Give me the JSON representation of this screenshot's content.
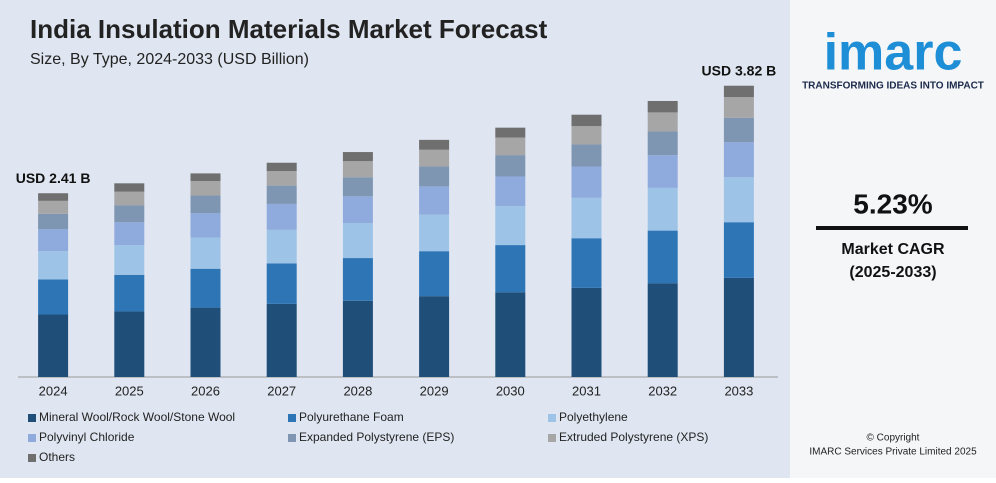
{
  "chart_data": {
    "type": "stacked_bar",
    "title": "India Insulation Materials Market Forecast",
    "subtitle": "Size, By Type, 2024-2033 (USD Billion)",
    "annotations": [
      "USD 2.41 B",
      "USD 3.82 B"
    ],
    "categories": [
      "2024",
      "2025",
      "2026",
      "2027",
      "2028",
      "2029",
      "2030",
      "2031",
      "2032",
      "2033"
    ],
    "ylim": [
      0,
      4
    ],
    "series": [
      {
        "name": "Mineral Wool/Rock Wool/Stone Wool",
        "color": "#1f4e79",
        "values": [
          0.82,
          0.86,
          0.91,
          0.96,
          1.0,
          1.06,
          1.11,
          1.17,
          1.23,
          1.3
        ]
      },
      {
        "name": "Polyurethane Foam",
        "color": "#2e75b6",
        "values": [
          0.46,
          0.48,
          0.51,
          0.53,
          0.56,
          0.59,
          0.62,
          0.65,
          0.69,
          0.73
        ]
      },
      {
        "name": "Polyethylene",
        "color": "#9dc3e6",
        "values": [
          0.37,
          0.39,
          0.41,
          0.44,
          0.46,
          0.48,
          0.51,
          0.53,
          0.56,
          0.59
        ]
      },
      {
        "name": "Polyvinyl Chloride",
        "color": "#8faadc",
        "values": [
          0.29,
          0.3,
          0.32,
          0.34,
          0.35,
          0.37,
          0.39,
          0.41,
          0.43,
          0.46
        ]
      },
      {
        "name": "Expanded Polystyrene (EPS)",
        "color": "#7f96b2",
        "values": [
          0.2,
          0.22,
          0.23,
          0.24,
          0.25,
          0.26,
          0.28,
          0.29,
          0.31,
          0.32
        ]
      },
      {
        "name": "Extruded Polystyrene (XPS)",
        "color": "#a6a6a6",
        "values": [
          0.17,
          0.18,
          0.19,
          0.19,
          0.21,
          0.22,
          0.23,
          0.24,
          0.25,
          0.27
        ]
      },
      {
        "name": "Others",
        "color": "#6f6f6f",
        "values": [
          0.1,
          0.11,
          0.1,
          0.11,
          0.12,
          0.13,
          0.13,
          0.15,
          0.15,
          0.15
        ]
      }
    ]
  },
  "side_panel": {
    "logo": "imarc",
    "tagline": "TRANSFORMING IDEAS INTO IMPACT",
    "cagr": "5.23%",
    "cagr_label": "Market CAGR",
    "cagr_period": "(2025-2033)",
    "copyright": "© Copyright",
    "company": "IMARC Services Private Limited 2025"
  }
}
